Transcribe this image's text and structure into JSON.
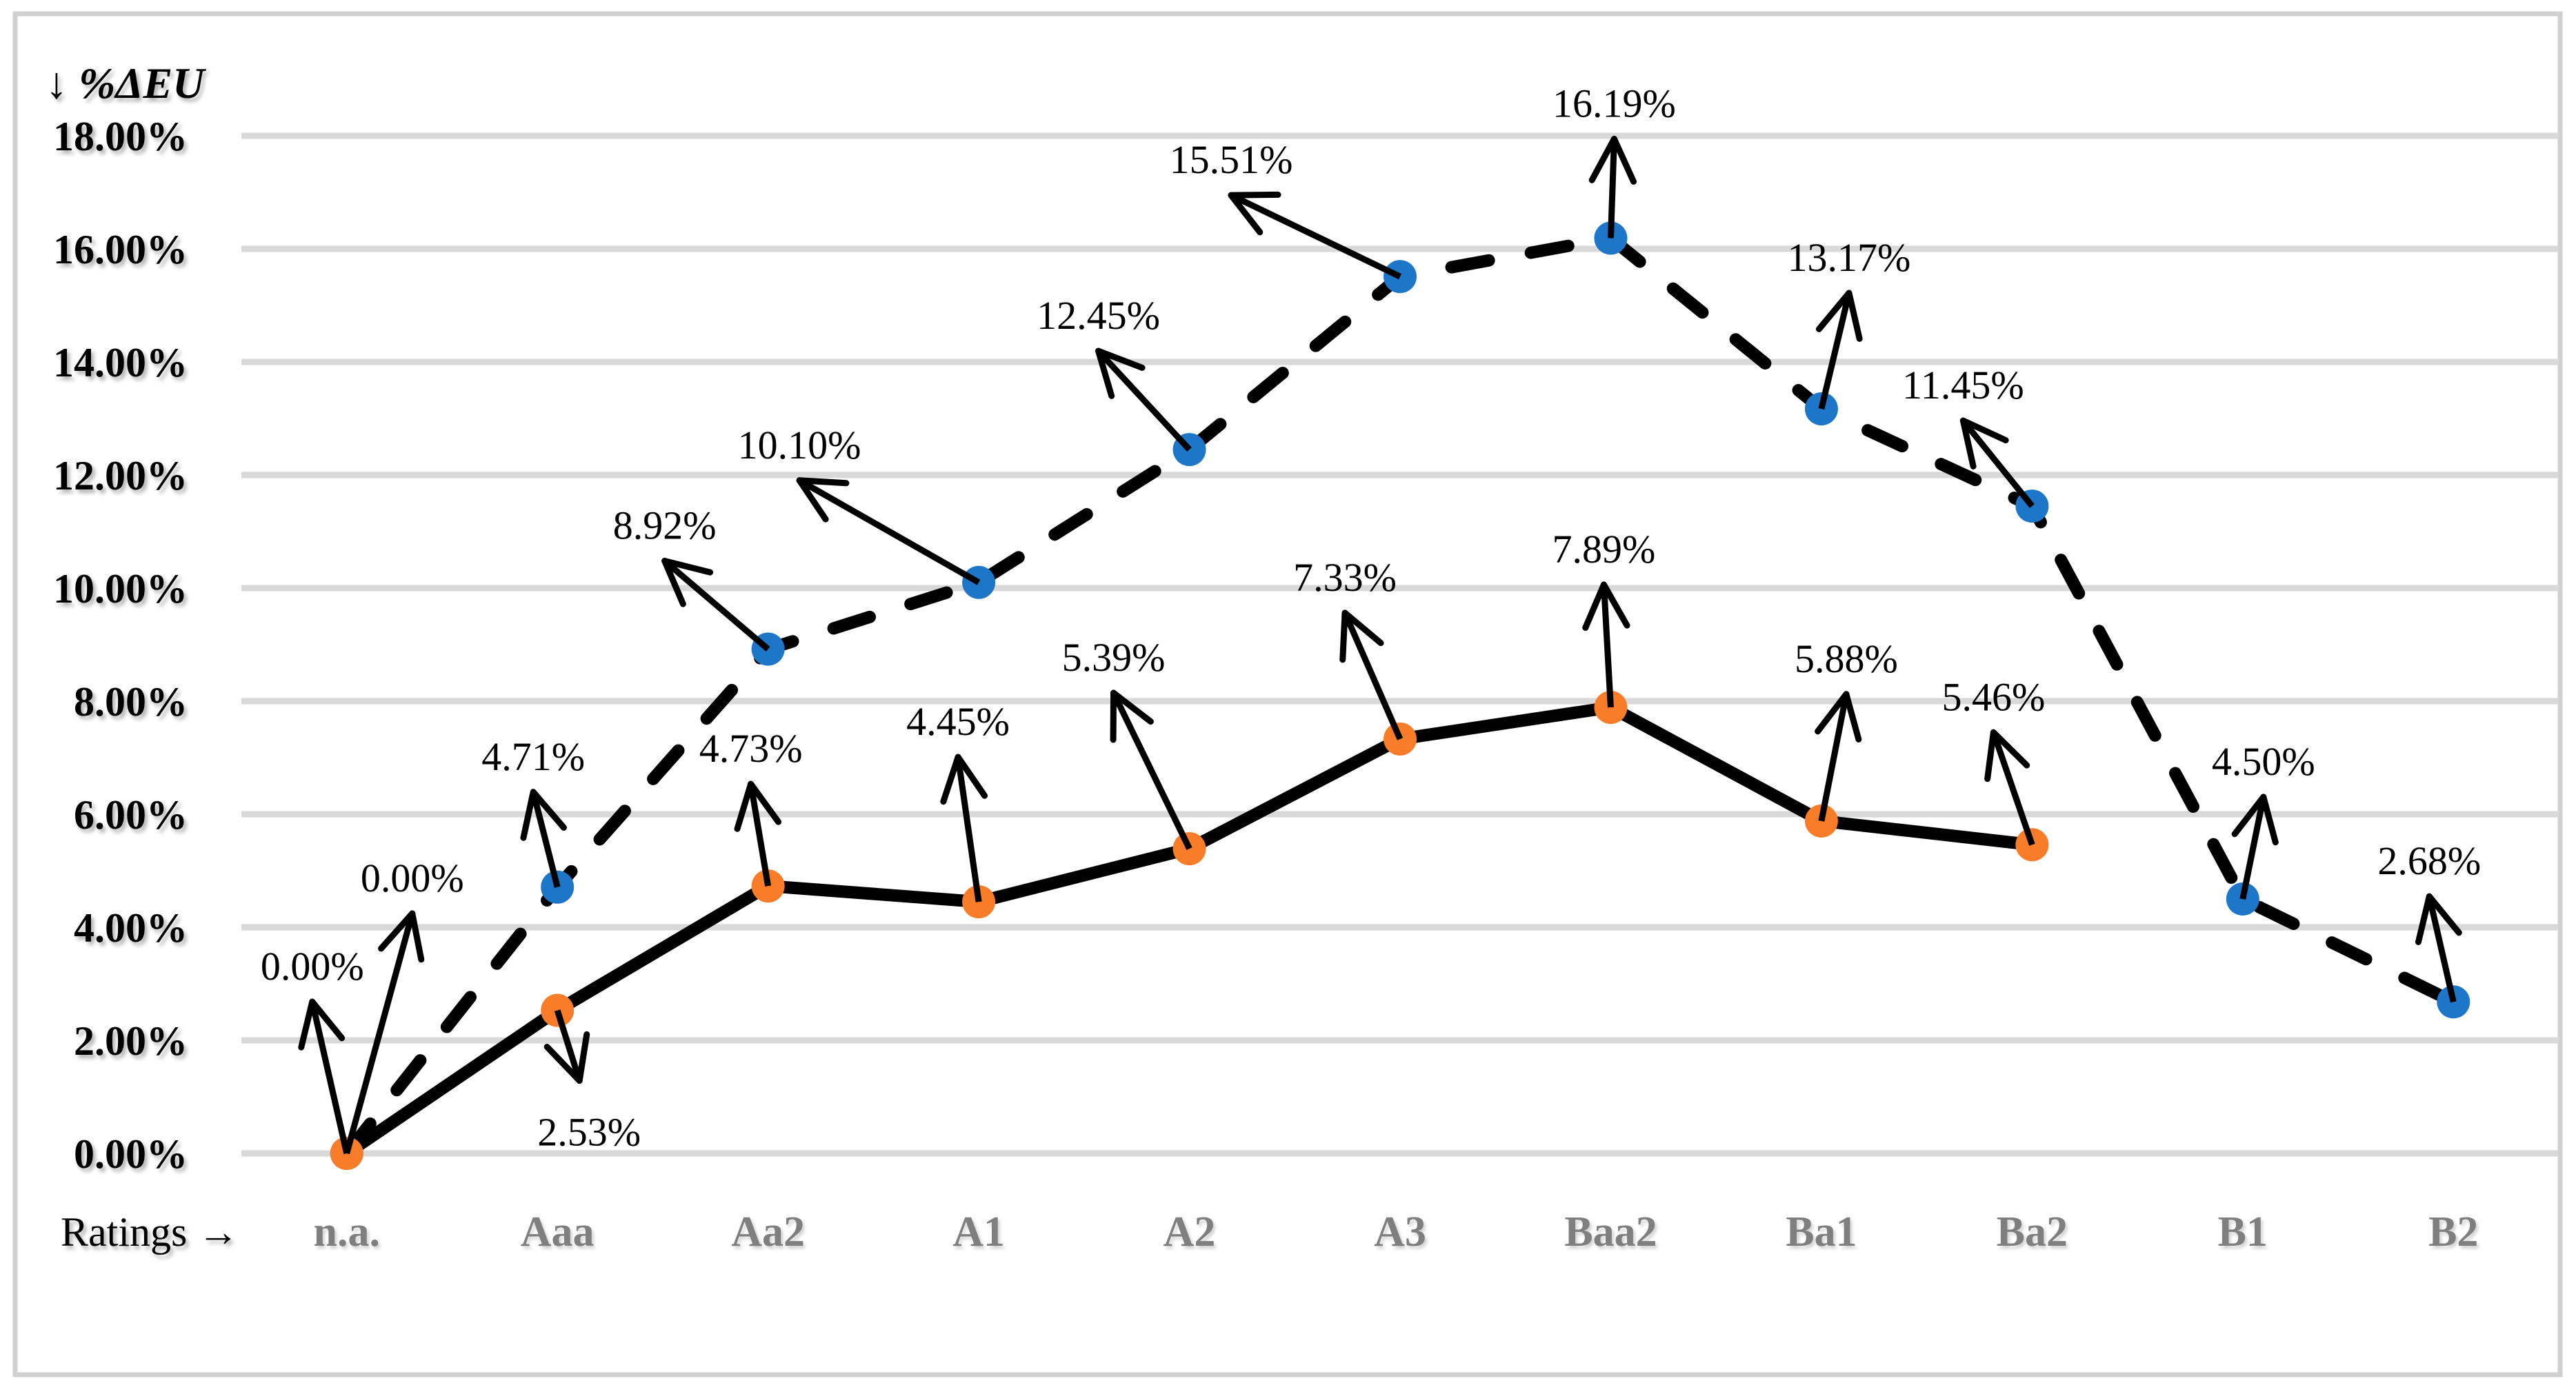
{
  "page": {
    "background": "#ffffff",
    "border_color": "#d0d0d0"
  },
  "axes": {
    "y_title_arrow": "↓",
    "y_title_text": " %ΔEU",
    "x_caption_text": "Ratings ",
    "x_caption_arrow": "→"
  },
  "colors": {
    "gridline": "#d9d9d9",
    "line": "#000000",
    "blue_marker": "#1e76c8",
    "orange_marker": "#f97d28",
    "category_label": "#7f7f7f"
  },
  "chart_data": {
    "type": "line",
    "title": "",
    "y_axis_title": "↓ %ΔEU",
    "x_axis_caption": "Ratings →",
    "categories": [
      "n.a.",
      "Aaa",
      "Aa2",
      "A1",
      "A2",
      "A3",
      "Baa2",
      "Ba1",
      "Ba2",
      "B1",
      "B2"
    ],
    "ylim": [
      0,
      18
    ],
    "y_tick_step": 2,
    "y_tick_labels": [
      "0.00%",
      "2.00%",
      "4.00%",
      "6.00%",
      "8.00%",
      "10.00%",
      "12.00%",
      "14.00%",
      "16.00%",
      "18.00%"
    ],
    "grid": true,
    "legend": "none",
    "series": [
      {
        "id": "eu-change-upper-dashed",
        "line_style": "dashed",
        "line_color": "#000000",
        "marker_color": "#1e76c8",
        "values": [
          0.0,
          4.71,
          8.92,
          10.1,
          12.45,
          15.51,
          16.19,
          13.17,
          11.45,
          4.5,
          2.68
        ],
        "point_labels": [
          "0.00%",
          "4.71%",
          "8.92%",
          "10.10%",
          "12.45%",
          "15.51%",
          "16.19%",
          "13.17%",
          "11.45%",
          "4.50%",
          "2.68%"
        ],
        "label_offsets": [
          [
            95,
            -400
          ],
          [
            -35,
            -190
          ],
          [
            -150,
            -180
          ],
          [
            -260,
            -200
          ],
          [
            -132,
            -195
          ],
          [
            -245,
            -170
          ],
          [
            5,
            -196
          ],
          [
            40,
            -220
          ],
          [
            -100,
            -176
          ],
          [
            30,
            -200
          ],
          [
            -35,
            -205
          ]
        ]
      },
      {
        "id": "eu-change-lower-solid",
        "line_style": "solid",
        "line_color": "#000000",
        "marker_color": "#f97d28",
        "values": [
          0.0,
          2.53,
          4.73,
          4.45,
          5.39,
          7.33,
          7.89,
          5.88,
          5.46
        ],
        "point_labels": [
          "0.00%",
          "2.53%",
          "4.73%",
          "4.45%",
          "5.39%",
          "7.33%",
          "7.89%",
          "5.88%",
          "5.46%"
        ],
        "label_offsets": [
          [
            -50,
            -272
          ],
          [
            46,
            176
          ],
          [
            -25,
            -200
          ],
          [
            -30,
            -262
          ],
          [
            -110,
            -278
          ],
          [
            -80,
            -235
          ],
          [
            -10,
            -230
          ],
          [
            36,
            -236
          ],
          [
            -56,
            -215
          ]
        ]
      }
    ]
  }
}
